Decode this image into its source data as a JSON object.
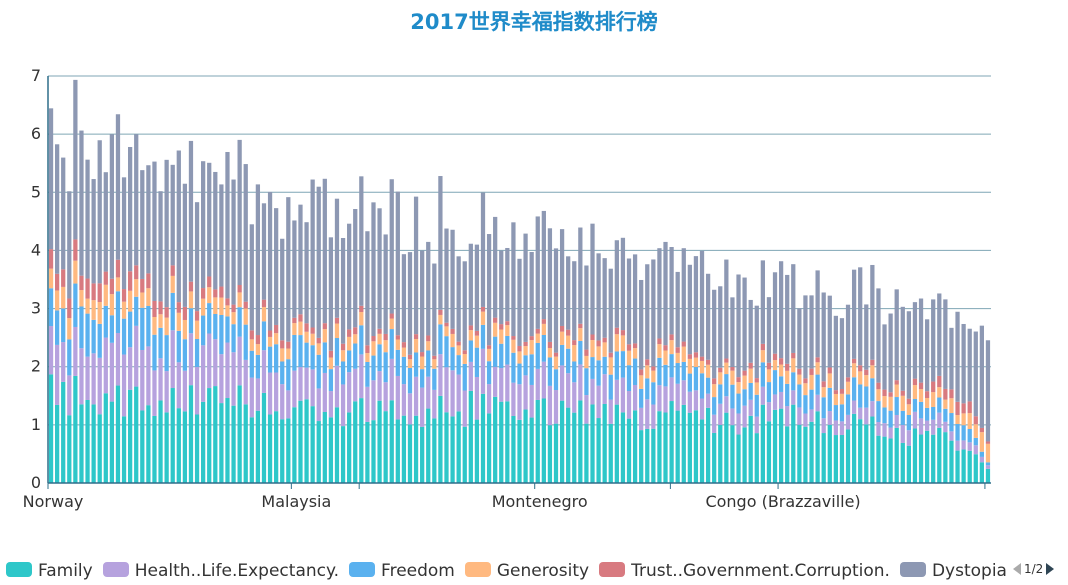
{
  "chart_data": {
    "type": "bar",
    "stacked": true,
    "title": "2017世界幸福指数排行榜",
    "xlabel": "",
    "ylabel": "",
    "ylim": [
      0,
      7
    ],
    "yticks": [
      0,
      1,
      2,
      3,
      4,
      5,
      6,
      7
    ],
    "grid": true,
    "legend_position": "bottom",
    "legend_page": "1/2",
    "category_count": 155,
    "x_tick_labels": [
      {
        "index": 0,
        "label": "Norway"
      },
      {
        "index": 40,
        "label": "Malaysia"
      },
      {
        "index": 80,
        "label": "Montenegro"
      },
      {
        "index": 120,
        "label": "Congo (Brazzaville)"
      },
      {
        "index": 154,
        "label": ""
      }
    ],
    "series": [
      {
        "name": "Family",
        "color": "#2ec7c9",
        "knots": [
          [
            0,
            1.53
          ],
          [
            10,
            1.45
          ],
          [
            20,
            1.42
          ],
          [
            30,
            1.35
          ],
          [
            40,
            1.3
          ],
          [
            50,
            1.27
          ],
          [
            60,
            1.2
          ],
          [
            70,
            1.3
          ],
          [
            80,
            1.2
          ],
          [
            90,
            1.2
          ],
          [
            100,
            1.15
          ],
          [
            110,
            1.05
          ],
          [
            120,
            1.1
          ],
          [
            130,
            1.0
          ],
          [
            140,
            0.85
          ],
          [
            150,
            0.7
          ],
          [
            154,
            0.3
          ]
        ]
      },
      {
        "name": "Health..Life.Expectancy.",
        "color": "#b6a2de",
        "knots": [
          [
            0,
            0.83
          ],
          [
            10,
            0.86
          ],
          [
            20,
            0.84
          ],
          [
            30,
            0.8
          ],
          [
            40,
            0.6
          ],
          [
            50,
            0.6
          ],
          [
            60,
            0.65
          ],
          [
            70,
            0.65
          ],
          [
            80,
            0.55
          ],
          [
            90,
            0.55
          ],
          [
            100,
            0.4
          ],
          [
            110,
            0.3
          ],
          [
            120,
            0.3
          ],
          [
            130,
            0.25
          ],
          [
            140,
            0.25
          ],
          [
            150,
            0.2
          ],
          [
            154,
            0.05
          ]
        ]
      },
      {
        "name": "Freedom",
        "color": "#5ab1ef",
        "knots": [
          [
            0,
            0.63
          ],
          [
            10,
            0.6
          ],
          [
            20,
            0.57
          ],
          [
            30,
            0.55
          ],
          [
            40,
            0.5
          ],
          [
            50,
            0.45
          ],
          [
            60,
            0.42
          ],
          [
            70,
            0.45
          ],
          [
            80,
            0.42
          ],
          [
            90,
            0.4
          ],
          [
            100,
            0.38
          ],
          [
            110,
            0.35
          ],
          [
            120,
            0.35
          ],
          [
            130,
            0.33
          ],
          [
            140,
            0.3
          ],
          [
            150,
            0.25
          ],
          [
            154,
            0.05
          ]
        ]
      },
      {
        "name": "Generosity",
        "color": "#ffb980",
        "knots": [
          [
            0,
            0.36
          ],
          [
            10,
            0.3
          ],
          [
            20,
            0.27
          ],
          [
            30,
            0.25
          ],
          [
            40,
            0.2
          ],
          [
            50,
            0.2
          ],
          [
            60,
            0.2
          ],
          [
            70,
            0.22
          ],
          [
            80,
            0.2
          ],
          [
            90,
            0.25
          ],
          [
            100,
            0.22
          ],
          [
            110,
            0.2
          ],
          [
            120,
            0.22
          ],
          [
            130,
            0.2
          ],
          [
            140,
            0.22
          ],
          [
            150,
            0.2
          ],
          [
            154,
            0.3
          ]
        ]
      },
      {
        "name": "Trust..Government.Corruption.",
        "color": "#d87a80",
        "knots": [
          [
            0,
            0.32
          ],
          [
            10,
            0.3
          ],
          [
            20,
            0.2
          ],
          [
            30,
            0.15
          ],
          [
            40,
            0.12
          ],
          [
            50,
            0.12
          ],
          [
            60,
            0.08
          ],
          [
            70,
            0.08
          ],
          [
            80,
            0.08
          ],
          [
            90,
            0.1
          ],
          [
            100,
            0.08
          ],
          [
            110,
            0.08
          ],
          [
            120,
            0.1
          ],
          [
            130,
            0.08
          ],
          [
            140,
            0.1
          ],
          [
            150,
            0.2
          ],
          [
            154,
            0.05
          ]
        ]
      },
      {
        "name": "Dystopia.Residual",
        "color": "#8d98b3",
        "knots": [
          [
            0,
            2.28
          ],
          [
            10,
            2.15
          ],
          [
            20,
            2.1
          ],
          [
            30,
            2.1
          ],
          [
            40,
            2.1
          ],
          [
            50,
            2.1
          ],
          [
            60,
            1.95
          ],
          [
            70,
            1.7
          ],
          [
            80,
            1.65
          ],
          [
            90,
            1.55
          ],
          [
            100,
            1.6
          ],
          [
            110,
            1.45
          ],
          [
            120,
            1.35
          ],
          [
            130,
            1.45
          ],
          [
            140,
            1.35
          ],
          [
            150,
            1.3
          ],
          [
            154,
            1.95
          ]
        ]
      }
    ]
  }
}
